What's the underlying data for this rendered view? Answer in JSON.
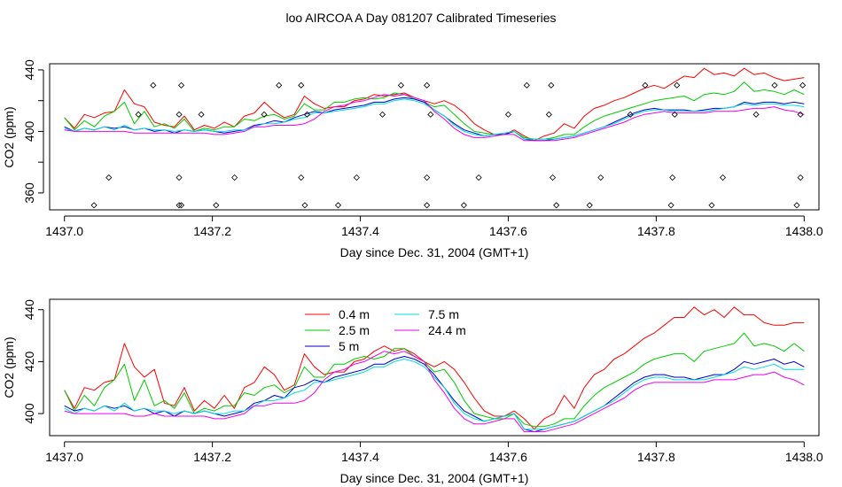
{
  "figure": {
    "title": "loo AIRCOA A  Day 081207  Calibrated Timeseries"
  },
  "chart_data": [
    {
      "type": "line",
      "xlabel": "Day since Dec. 31, 2004 (GMT+1)",
      "ylabel": "CO2 (ppm)",
      "xlim": [
        1436.98,
        1438.02
      ],
      "ylim": [
        349,
        444
      ],
      "x_ticks": [
        1437.0,
        1437.2,
        1437.4,
        1437.6,
        1437.8,
        1438.0
      ],
      "x_tick_labels": [
        "1437.0",
        "1437.2",
        "1437.4",
        "1437.6",
        "1437.8",
        "1438.0"
      ],
      "y_ticks": [
        360,
        380,
        400,
        420,
        440
      ],
      "y_tick_labels": [
        "360",
        "",
        "400",
        "",
        "440"
      ],
      "grid": false,
      "legend": "none",
      "series": [
        {
          "color": "#ff0000",
          "values": [
            409,
            402,
            411,
            409,
            412,
            413,
            427,
            418,
            416,
            406,
            404,
            403,
            410,
            401,
            404,
            402,
            406,
            403,
            410,
            412,
            419,
            413,
            409,
            411,
            423,
            418,
            415,
            416,
            416,
            420,
            421,
            424,
            423,
            424,
            425,
            422,
            420,
            418,
            420,
            417,
            412,
            405,
            401,
            398,
            398,
            401,
            397,
            394,
            397,
            399,
            405,
            402,
            410,
            415,
            417,
            420,
            422,
            425,
            428,
            430,
            428,
            432,
            436,
            435,
            441,
            437,
            438,
            436,
            441,
            437,
            438,
            435,
            433,
            434,
            435
          ]
        },
        {
          "color": "#00cc00",
          "values": [
            409,
            401,
            407,
            403,
            410,
            413,
            419,
            405,
            413,
            403,
            405,
            402,
            408,
            400,
            402,
            401,
            403,
            403,
            408,
            407,
            410,
            411,
            408,
            410,
            418,
            414,
            414,
            419,
            419,
            421,
            422,
            421,
            422,
            425,
            424,
            421,
            419,
            416,
            417,
            411,
            405,
            400,
            399,
            398,
            398,
            400,
            396,
            395,
            395,
            396,
            398,
            398,
            403,
            407,
            410,
            412,
            414,
            416,
            418,
            420,
            421,
            422,
            423,
            420,
            424,
            425,
            424,
            426,
            432,
            426,
            427,
            426,
            424,
            427,
            424
          ]
        },
        {
          "color": "#0000cc",
          "values": [
            403,
            400,
            402,
            401,
            403,
            402,
            403,
            401,
            402,
            400,
            401,
            399,
            401,
            400,
            401,
            400,
            399,
            400,
            401,
            404,
            405,
            407,
            406,
            409,
            411,
            413,
            412,
            414,
            415,
            416,
            417,
            419,
            419,
            421,
            422,
            421,
            419,
            414,
            410,
            405,
            401,
            399,
            397,
            398,
            398,
            400,
            395,
            394,
            394,
            395,
            396,
            397,
            399,
            401,
            403,
            406,
            409,
            412,
            414,
            415,
            414,
            414,
            414,
            413,
            414,
            415,
            415,
            416,
            419,
            418,
            419,
            419,
            418,
            419,
            418
          ]
        },
        {
          "color": "#00dddd",
          "values": [
            402,
            400,
            402,
            401,
            403,
            401,
            404,
            401,
            402,
            401,
            401,
            400,
            401,
            400,
            401,
            400,
            400,
            401,
            401,
            403,
            405,
            405,
            406,
            408,
            409,
            412,
            412,
            413,
            414,
            415,
            416,
            418,
            418,
            420,
            421,
            420,
            418,
            414,
            410,
            404,
            400,
            398,
            397,
            398,
            399,
            400,
            395,
            395,
            395,
            395,
            396,
            397,
            399,
            401,
            403,
            405,
            408,
            411,
            413,
            414,
            414,
            413,
            413,
            413,
            413,
            414,
            415,
            416,
            418,
            417,
            418,
            418,
            417,
            417,
            416
          ]
        },
        {
          "color": "#ee00ee",
          "values": [
            401,
            400,
            400,
            400,
            400,
            400,
            400,
            399,
            399,
            399,
            399,
            399,
            399,
            399,
            399,
            398,
            398,
            399,
            400,
            403,
            403,
            404,
            404,
            404,
            405,
            408,
            413,
            416,
            417,
            419,
            420,
            422,
            424,
            423,
            424,
            422,
            420,
            413,
            408,
            402,
            398,
            396,
            396,
            397,
            398,
            398,
            394,
            394,
            394,
            394,
            395,
            396,
            398,
            400,
            402,
            404,
            406,
            409,
            411,
            412,
            413,
            412,
            412,
            412,
            412,
            413,
            413,
            413,
            414,
            415,
            415,
            416,
            414,
            413,
            411
          ]
        }
      ],
      "markers": {
        "symbol": "open diamond",
        "x": [
          1437.04,
          1437.06,
          1437.1,
          1437.12,
          1437.155,
          1437.155,
          1437.155,
          1437.158,
          1437.158,
          1437.185,
          1437.205,
          1437.23,
          1437.27,
          1437.29,
          1437.32,
          1437.32,
          1437.325,
          1437.328,
          1437.37,
          1437.395,
          1437.43,
          1437.455,
          1437.49,
          1437.49,
          1437.49,
          1437.495,
          1437.54,
          1437.56,
          1437.6,
          1437.625,
          1437.655,
          1437.658,
          1437.66,
          1437.665,
          1437.71,
          1437.725,
          1437.765,
          1437.785,
          1437.82,
          1437.822,
          1437.825,
          1437.828,
          1437.875,
          1437.89,
          1437.935,
          1437.96,
          1437.99,
          1437.995,
          1437.995,
          1437.998
        ],
        "y": [
          352,
          370,
          411,
          430,
          352,
          370,
          411,
          430,
          352,
          411,
          352,
          370,
          411,
          430,
          370,
          430,
          352,
          411,
          352,
          370,
          411,
          430,
          352,
          370,
          430,
          411,
          352,
          370,
          411,
          430,
          411,
          430,
          370,
          352,
          352,
          370,
          411,
          430,
          352,
          370,
          411,
          430,
          352,
          370,
          411,
          430,
          352,
          370,
          411,
          430
        ]
      }
    },
    {
      "type": "line",
      "xlabel": "Day since Dec. 31, 2004 (GMT+1)",
      "ylabel": "CO2 (ppm)",
      "xlim": [
        1436.98,
        1438.02
      ],
      "ylim": [
        391.5,
        444
      ],
      "x_ticks": [
        1437.0,
        1437.2,
        1437.4,
        1437.6,
        1437.8,
        1438.0
      ],
      "x_tick_labels": [
        "1437.0",
        "1437.2",
        "1437.4",
        "1437.6",
        "1437.8",
        "1438.0"
      ],
      "y_ticks": [
        400,
        420,
        440
      ],
      "y_tick_labels": [
        "400",
        "420",
        "440"
      ],
      "grid": false,
      "legend": "top-center",
      "series": [
        {
          "name": "0.4 m",
          "color": "#ff0000",
          "values": [
            409,
            402,
            410,
            409,
            412,
            413,
            427,
            418,
            414,
            417,
            404,
            403,
            410,
            401,
            405,
            402,
            407,
            402,
            410,
            412,
            418,
            415,
            409,
            411,
            423,
            418,
            415,
            416,
            416,
            420,
            421,
            424,
            426,
            424,
            425,
            423,
            420,
            418,
            420,
            417,
            412,
            406,
            401,
            399,
            399,
            401,
            398,
            394,
            398,
            400,
            407,
            402,
            410,
            415,
            417,
            421,
            423,
            426,
            429,
            431,
            434,
            437,
            437,
            441,
            438,
            440,
            437,
            441,
            438,
            438,
            435,
            434,
            434,
            435,
            435
          ]
        },
        {
          "name": "2.5 m",
          "color": "#00cc00",
          "values": [
            409,
            401,
            407,
            403,
            410,
            413,
            419,
            405,
            413,
            403,
            405,
            402,
            408,
            400,
            402,
            401,
            403,
            403,
            408,
            407,
            410,
            411,
            408,
            410,
            418,
            414,
            414,
            419,
            419,
            421,
            422,
            421,
            422,
            425,
            425,
            422,
            420,
            416,
            417,
            412,
            405,
            400,
            399,
            398,
            398,
            400,
            396,
            395,
            395,
            396,
            398,
            398,
            403,
            407,
            410,
            412,
            414,
            416,
            419,
            421,
            422,
            423,
            423,
            420,
            424,
            425,
            426,
            427,
            431,
            426,
            427,
            426,
            424,
            427,
            424
          ]
        },
        {
          "name": "5 m",
          "color": "#0000cc",
          "values": [
            403,
            401,
            402,
            401,
            403,
            402,
            403,
            401,
            402,
            400,
            401,
            399,
            401,
            400,
            401,
            400,
            399,
            400,
            401,
            404,
            405,
            407,
            406,
            410,
            411,
            413,
            412,
            414,
            415,
            416,
            417,
            419,
            419,
            421,
            422,
            421,
            419,
            415,
            410,
            405,
            401,
            399,
            397,
            398,
            399,
            400,
            394,
            393,
            394,
            395,
            396,
            397,
            399,
            401,
            403,
            406,
            409,
            412,
            414,
            415,
            415,
            414,
            414,
            413,
            414,
            415,
            415,
            417,
            420,
            419,
            420,
            421,
            419,
            420,
            418
          ]
        },
        {
          "name": "7.5 m",
          "color": "#00dddd",
          "values": [
            402,
            400,
            402,
            401,
            403,
            401,
            404,
            401,
            402,
            401,
            401,
            400,
            401,
            400,
            401,
            400,
            400,
            401,
            401,
            403,
            405,
            405,
            406,
            408,
            409,
            412,
            412,
            413,
            414,
            415,
            416,
            418,
            418,
            420,
            421,
            420,
            418,
            414,
            410,
            404,
            400,
            398,
            397,
            398,
            399,
            400,
            394,
            394,
            394,
            395,
            396,
            397,
            399,
            401,
            403,
            405,
            408,
            411,
            413,
            414,
            414,
            413,
            413,
            413,
            413,
            414,
            415,
            416,
            418,
            417,
            418,
            419,
            417,
            417,
            417
          ]
        },
        {
          "name": "24.4 m",
          "color": "#ee00ee",
          "values": [
            401,
            400,
            400,
            400,
            400,
            400,
            400,
            399,
            399,
            400,
            399,
            399,
            399,
            399,
            399,
            398,
            398,
            399,
            400,
            403,
            403,
            404,
            404,
            404,
            405,
            408,
            413,
            416,
            417,
            419,
            420,
            422,
            424,
            423,
            424,
            422,
            420,
            413,
            408,
            402,
            398,
            396,
            396,
            397,
            398,
            398,
            393,
            393,
            393,
            394,
            395,
            396,
            398,
            400,
            402,
            404,
            406,
            409,
            411,
            412,
            412,
            412,
            412,
            412,
            412,
            413,
            413,
            413,
            414,
            415,
            415,
            416,
            414,
            413,
            411
          ]
        }
      ]
    }
  ]
}
